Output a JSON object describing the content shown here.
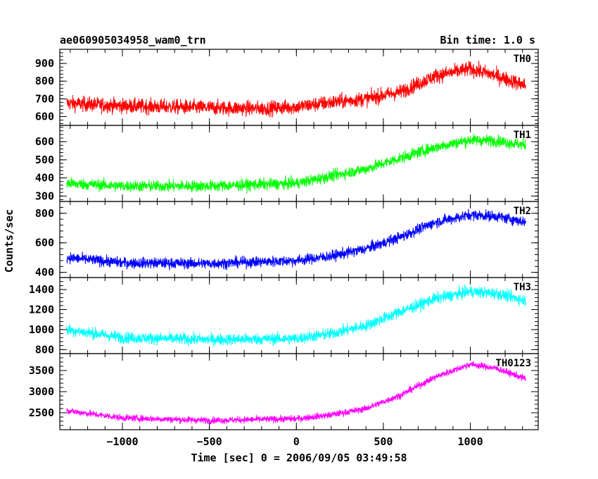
{
  "header": {
    "title": "ae060905034958_wam0_trn",
    "bin_time": "Bin time: 1.0 s"
  },
  "chart_data": {
    "type": "line",
    "xlabel": "Time [sec] 0 = 2006/09/05 03:49:58",
    "ylabel": "Counts/sec",
    "xlim": [
      -1360,
      1390
    ],
    "xticks": [
      -1000,
      -500,
      0,
      500,
      1000
    ],
    "x_range": [
      -1320,
      1320
    ],
    "grid": false,
    "panels": [
      {
        "name": "TH0",
        "color": "#ff0000",
        "ylim": [
          550,
          980
        ],
        "yticks": [
          600,
          700,
          800,
          900
        ],
        "trend": [
          [
            -1320,
            675
          ],
          [
            -1000,
            660
          ],
          [
            -500,
            650
          ],
          [
            -200,
            645
          ],
          [
            0,
            655
          ],
          [
            200,
            680
          ],
          [
            400,
            700
          ],
          [
            600,
            740
          ],
          [
            800,
            830
          ],
          [
            1000,
            870
          ],
          [
            1150,
            830
          ],
          [
            1320,
            775
          ]
        ],
        "noise": 40
      },
      {
        "name": "TH1",
        "color": "#00ff00",
        "ylim": [
          270,
          690
        ],
        "yticks": [
          300,
          400,
          500,
          600
        ],
        "trend": [
          [
            -1320,
            370
          ],
          [
            -1000,
            355
          ],
          [
            -500,
            355
          ],
          [
            0,
            370
          ],
          [
            200,
            410
          ],
          [
            400,
            450
          ],
          [
            600,
            510
          ],
          [
            800,
            570
          ],
          [
            1000,
            610
          ],
          [
            1150,
            605
          ],
          [
            1320,
            580
          ]
        ],
        "noise": 30
      },
      {
        "name": "TH2",
        "color": "#0000ff",
        "ylim": [
          365,
          880
        ],
        "yticks": [
          400,
          600,
          800
        ],
        "trend": [
          [
            -1320,
            500
          ],
          [
            -1000,
            465
          ],
          [
            -500,
            460
          ],
          [
            0,
            480
          ],
          [
            200,
            510
          ],
          [
            400,
            560
          ],
          [
            600,
            640
          ],
          [
            800,
            740
          ],
          [
            1000,
            790
          ],
          [
            1150,
            780
          ],
          [
            1320,
            740
          ]
        ],
        "noise": 35
      },
      {
        "name": "TH3",
        "color": "#00ffff",
        "ylim": [
          760,
          1520
        ],
        "yticks": [
          800,
          1000,
          1200,
          1400
        ],
        "trend": [
          [
            -1320,
            1000
          ],
          [
            -1000,
            920
          ],
          [
            -500,
            900
          ],
          [
            0,
            910
          ],
          [
            200,
            960
          ],
          [
            400,
            1040
          ],
          [
            600,
            1180
          ],
          [
            800,
            1310
          ],
          [
            1000,
            1380
          ],
          [
            1150,
            1360
          ],
          [
            1320,
            1290
          ]
        ],
        "noise": 55
      },
      {
        "name": "TH0123",
        "color": "#ff00ff",
        "ylim": [
          2100,
          3900
        ],
        "yticks": [
          2500,
          3000,
          3500
        ],
        "trend": [
          [
            -1320,
            2550
          ],
          [
            -1000,
            2380
          ],
          [
            -500,
            2320
          ],
          [
            0,
            2360
          ],
          [
            200,
            2450
          ],
          [
            400,
            2600
          ],
          [
            600,
            2920
          ],
          [
            800,
            3350
          ],
          [
            1000,
            3650
          ],
          [
            1150,
            3550
          ],
          [
            1320,
            3300
          ]
        ],
        "noise": 75
      }
    ]
  }
}
